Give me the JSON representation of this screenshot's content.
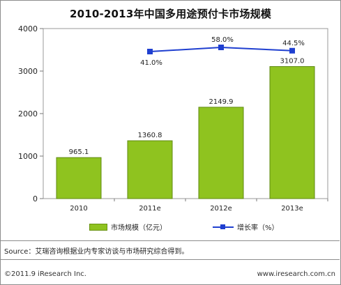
{
  "chart_data": {
    "type": "bar",
    "title": "2010-2013年中国多用途预付卡市场规模",
    "categories": [
      "2010",
      "2011e",
      "2012e",
      "2013e"
    ],
    "series": [
      {
        "name": "市场规模（亿元）",
        "type": "bar",
        "axis": "left",
        "values": [
          965.1,
          1360.8,
          2149.9,
          3107.0
        ],
        "data_labels": [
          "965.1",
          "1360.8",
          "2149.9",
          "3107.0"
        ],
        "color": "#8fc31f"
      },
      {
        "name": "增长率（%）",
        "type": "line",
        "axis": "secondary-hidden",
        "values": [
          null,
          41.0,
          58.0,
          44.5
        ],
        "data_labels": [
          "",
          "41.0%",
          "58.0%",
          "44.5%"
        ],
        "color": "#1f3fd0"
      }
    ],
    "ylim": [
      0,
      4000
    ],
    "yticks": [
      "0",
      "1000",
      "2000",
      "3000",
      "4000"
    ],
    "grid": false,
    "legend_position": "bottom"
  },
  "legend": {
    "bar_label": "市场规模（亿元）",
    "line_label": "增长率（%）"
  },
  "footer": {
    "source": "Source：艾瑞咨询根据业内专家访谈与市场研究综合得到。",
    "copyright": "©2011.9 iResearch Inc.",
    "website": "www.iresearch.com.cn"
  }
}
